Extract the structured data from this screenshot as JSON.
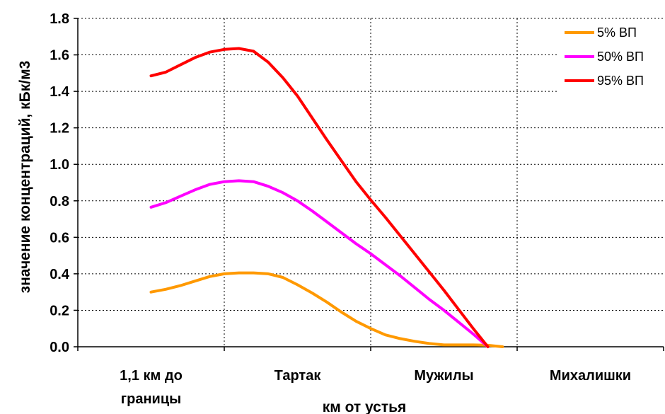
{
  "chart_data": {
    "type": "line",
    "title": "",
    "xlabel": "км от устья",
    "ylabel": "значение концентраций, кБк/м3",
    "ylim": [
      0,
      1.8
    ],
    "yticks": [
      "0.0",
      "0.2",
      "0.4",
      "0.6",
      "0.8",
      "1.0",
      "1.2",
      "1.4",
      "1.6",
      "1.8"
    ],
    "categories": [
      {
        "line1": "1,1 км до",
        "line2": "границы"
      },
      {
        "line1": "Тартак",
        "line2": ""
      },
      {
        "line1": "Мужилы",
        "line2": ""
      },
      {
        "line1": "Михалишки",
        "line2": ""
      }
    ],
    "x_domain": [
      0,
      4
    ],
    "grid": "dotted, x and y",
    "legend_position": "top-right",
    "series": [
      {
        "name": "5% ВП",
        "color": "#FF9900",
        "points": [
          [
            0.5,
            0.3
          ],
          [
            0.6,
            0.315
          ],
          [
            0.7,
            0.335
          ],
          [
            0.8,
            0.36
          ],
          [
            0.9,
            0.385
          ],
          [
            1.0,
            0.4
          ],
          [
            1.1,
            0.405
          ],
          [
            1.2,
            0.405
          ],
          [
            1.3,
            0.4
          ],
          [
            1.4,
            0.38
          ],
          [
            1.5,
            0.34
          ],
          [
            1.6,
            0.295
          ],
          [
            1.7,
            0.245
          ],
          [
            1.8,
            0.19
          ],
          [
            1.9,
            0.14
          ],
          [
            2.0,
            0.1
          ],
          [
            2.1,
            0.065
          ],
          [
            2.2,
            0.045
          ],
          [
            2.3,
            0.03
          ],
          [
            2.4,
            0.018
          ],
          [
            2.5,
            0.01
          ],
          [
            2.6,
            0.01
          ],
          [
            2.7,
            0.01
          ],
          [
            2.8,
            0.008
          ],
          [
            2.9,
            0.0
          ]
        ]
      },
      {
        "name": "50% ВП",
        "color": "#FF00FF",
        "points": [
          [
            0.5,
            0.765
          ],
          [
            0.6,
            0.79
          ],
          [
            0.7,
            0.825
          ],
          [
            0.8,
            0.86
          ],
          [
            0.9,
            0.89
          ],
          [
            1.0,
            0.905
          ],
          [
            1.1,
            0.91
          ],
          [
            1.2,
            0.905
          ],
          [
            1.3,
            0.88
          ],
          [
            1.4,
            0.845
          ],
          [
            1.5,
            0.8
          ],
          [
            1.6,
            0.745
          ],
          [
            1.7,
            0.685
          ],
          [
            1.8,
            0.625
          ],
          [
            1.9,
            0.565
          ],
          [
            2.0,
            0.51
          ],
          [
            2.1,
            0.45
          ],
          [
            2.2,
            0.39
          ],
          [
            2.3,
            0.325
          ],
          [
            2.4,
            0.26
          ],
          [
            2.5,
            0.2
          ],
          [
            2.6,
            0.135
          ],
          [
            2.7,
            0.07
          ],
          [
            2.8,
            0.0
          ]
        ]
      },
      {
        "name": "95% ВП",
        "color": "#FF0000",
        "points": [
          [
            0.5,
            1.485
          ],
          [
            0.6,
            1.505
          ],
          [
            0.7,
            1.545
          ],
          [
            0.8,
            1.585
          ],
          [
            0.9,
            1.615
          ],
          [
            1.0,
            1.63
          ],
          [
            1.1,
            1.635
          ],
          [
            1.2,
            1.62
          ],
          [
            1.3,
            1.56
          ],
          [
            1.4,
            1.475
          ],
          [
            1.5,
            1.375
          ],
          [
            1.6,
            1.255
          ],
          [
            1.7,
            1.135
          ],
          [
            1.8,
            1.02
          ],
          [
            1.9,
            0.905
          ],
          [
            2.0,
            0.805
          ],
          [
            2.1,
            0.71
          ],
          [
            2.2,
            0.61
          ],
          [
            2.3,
            0.51
          ],
          [
            2.4,
            0.41
          ],
          [
            2.5,
            0.31
          ],
          [
            2.6,
            0.205
          ],
          [
            2.7,
            0.1
          ],
          [
            2.8,
            0.0
          ]
        ]
      }
    ]
  }
}
